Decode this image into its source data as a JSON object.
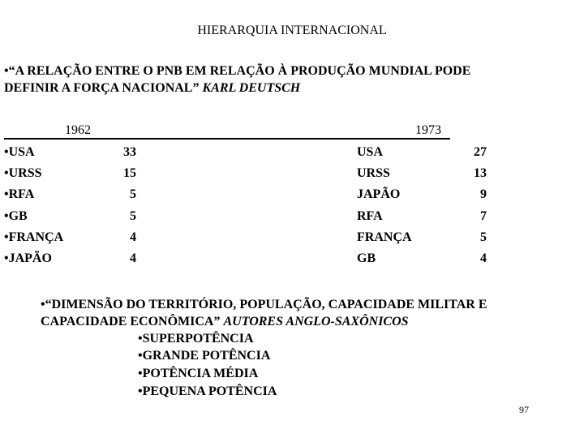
{
  "title": "HIERARQUIA INTERNACIONAL",
  "quote1": {
    "line1": "•“A RELAÇÃO ENTRE O PNB EM RELAÇÃO À PRODUÇÃO MUNDIAL PODE",
    "line2": "DEFINIR A FORÇA NACIONAL”",
    "author": "KARL DEUTSCH"
  },
  "table": {
    "left": {
      "year": "1962",
      "rows": [
        {
          "name": "•USA",
          "value": "33"
        },
        {
          "name": "•URSS",
          "value": "15"
        },
        {
          "name": "•RFA",
          "value": "5"
        },
        {
          "name": "•GB",
          "value": "5"
        },
        {
          "name": "•FRANÇA",
          "value": "4"
        },
        {
          "name": "•JAPÃO",
          "value": "4"
        }
      ]
    },
    "right": {
      "year": "1973",
      "rows": [
        {
          "name": "USA",
          "value": "27"
        },
        {
          "name": "URSS",
          "value": "13"
        },
        {
          "name": "JAPÃO",
          "value": "9"
        },
        {
          "name": "RFA",
          "value": "7"
        },
        {
          "name": "FRANÇA",
          "value": "5"
        },
        {
          "name": "GB",
          "value": "4"
        }
      ]
    }
  },
  "quote2": {
    "line1": "•“DIMENSÃO DO TERRITÓRIO, POPULAÇÃO, CAPACIDADE MILITAR E",
    "line2": "CAPACIDADE ECONÔMICA”",
    "author": "AUTORES ANGLO-SAXÔNICOS"
  },
  "categories": [
    "•SUPERPOTÊNCIA",
    "•GRANDE POTÊNCIA",
    "•POTÊNCIA MÉDIA",
    "•PEQUENA POTÊNCIA"
  ],
  "page_number": "97"
}
